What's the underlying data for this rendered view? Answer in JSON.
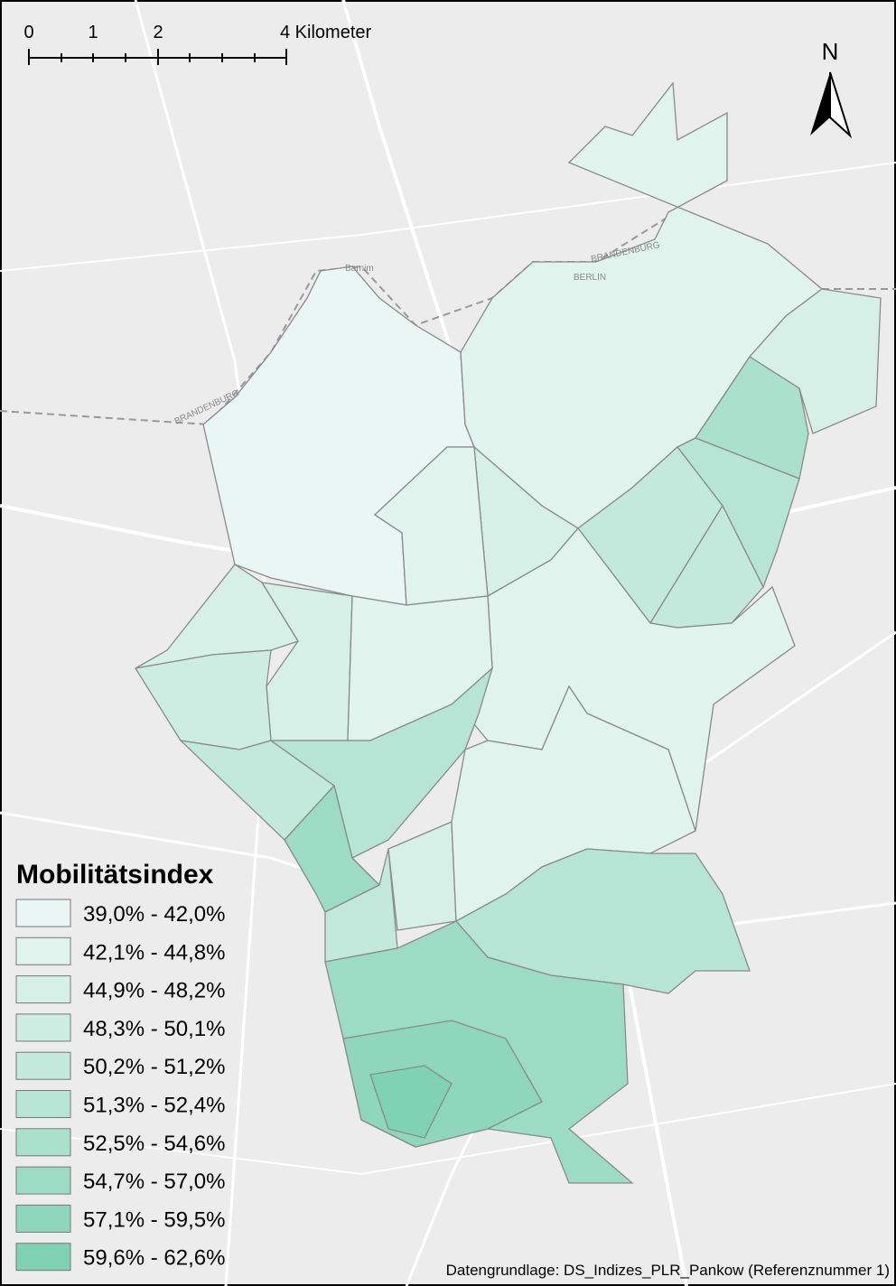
{
  "scale_bar": {
    "labels": [
      "0",
      "1",
      "2",
      "4 Kilometer"
    ]
  },
  "north_arrow": {
    "label": "N"
  },
  "basemap_labels": [
    "BRANDENBURG",
    "BERLIN",
    "Barnim",
    "BRANDENBURG"
  ],
  "legend": {
    "title": "Mobilitätsindex",
    "items": [
      {
        "label": "39,0% - 42,0%",
        "color": "#e9f6f3"
      },
      {
        "label": "42,1% - 44,8%",
        "color": "#e0f3ed"
      },
      {
        "label": "44,9% - 48,2%",
        "color": "#d6f0e7"
      },
      {
        "label": "48,3% - 50,1%",
        "color": "#cdede2"
      },
      {
        "label": "50,2% - 51,2%",
        "color": "#c2e9dc"
      },
      {
        "label": "51,3% - 52,4%",
        "color": "#b6e5d5"
      },
      {
        "label": "52,5% - 54,6%",
        "color": "#a9e1cd"
      },
      {
        "label": "54,7% - 57,0%",
        "color": "#9cdcc5"
      },
      {
        "label": "57,1% - 59,5%",
        "color": "#8ed7bd"
      },
      {
        "label": "59,6% - 62,6%",
        "color": "#80d2b4"
      }
    ]
  },
  "source": "Datengrundlage: DS_Indizes_PLR_Pankow (Referenznummer 1)"
}
